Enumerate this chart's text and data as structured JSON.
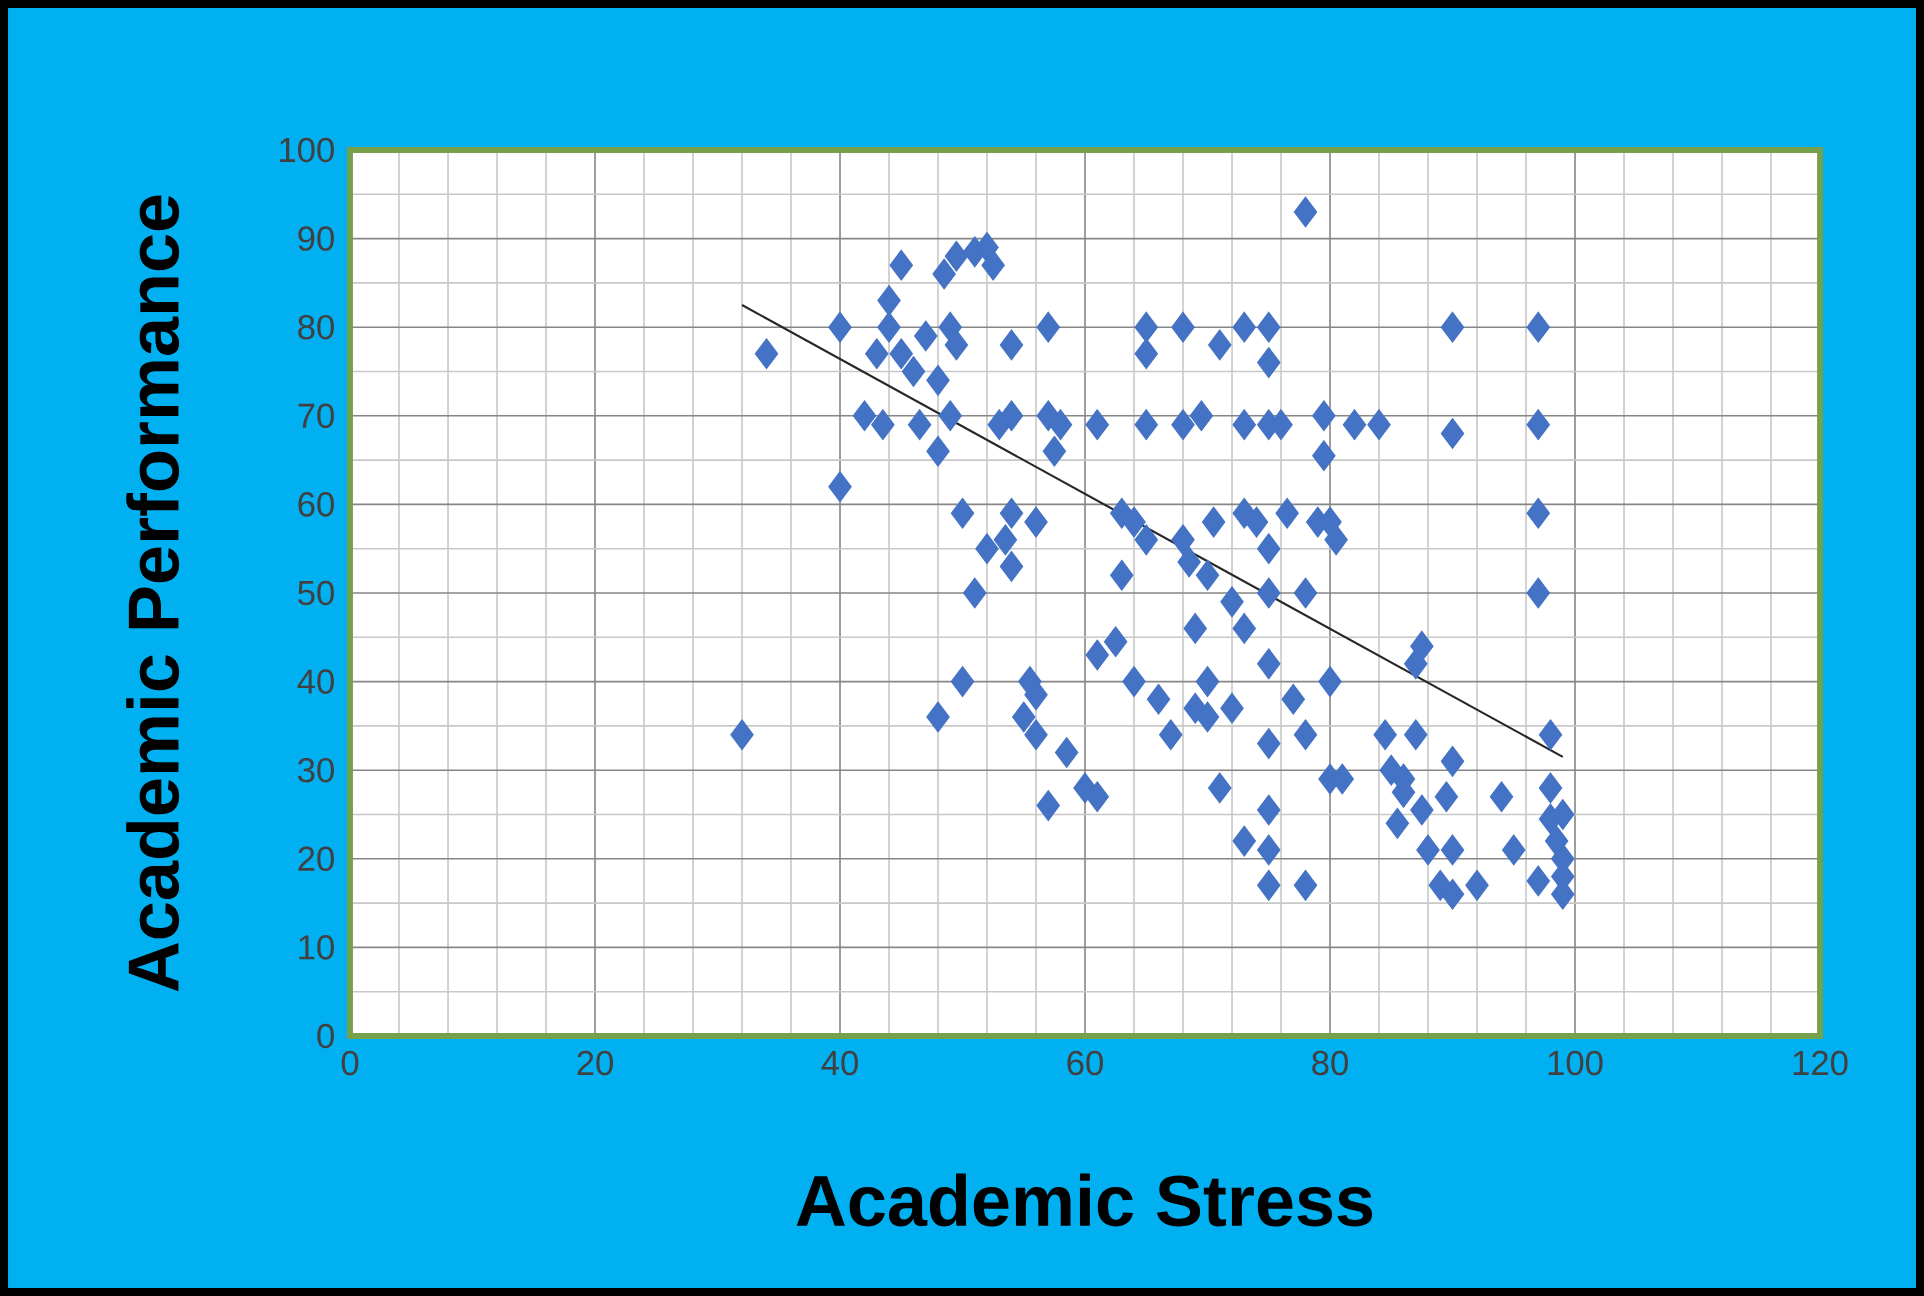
{
  "chart_data": {
    "type": "scatter",
    "xlabel": "Academic Stress",
    "ylabel": "Academic Performance",
    "xlim": [
      0,
      120
    ],
    "xticks": [
      0,
      20,
      40,
      60,
      80,
      100,
      120
    ],
    "ylim": [
      0,
      100
    ],
    "yticks": [
      0,
      10,
      20,
      30,
      40,
      50,
      60,
      70,
      80,
      90,
      100
    ],
    "grid": true,
    "marker": "diamond",
    "series": [
      {
        "color": "#4472c4",
        "x": [
          32,
          34,
          40,
          40,
          42,
          43.5,
          43,
          44,
          44,
          45,
          45,
          46,
          46.5,
          47,
          48,
          48,
          48,
          49,
          49,
          48.5,
          49.5,
          49.5,
          50,
          50,
          51,
          51,
          52,
          52,
          52.5,
          53,
          53.5,
          54,
          54,
          54,
          54,
          55,
          55.5,
          56,
          56,
          56,
          57,
          57,
          57,
          57.5,
          58,
          58.5,
          60,
          61,
          61,
          61,
          62.5,
          63,
          63,
          64,
          64,
          65,
          65,
          65,
          65,
          66,
          67,
          68,
          68,
          68,
          68.5,
          69,
          69,
          69.5,
          70,
          70,
          70,
          70.5,
          71,
          71,
          72,
          72,
          73,
          73,
          73,
          73,
          73,
          74,
          75,
          75,
          75,
          75,
          75,
          75,
          75,
          75,
          75,
          75,
          76,
          76.5,
          77,
          78,
          78,
          78,
          78,
          79,
          79.5,
          79.5,
          80,
          80,
          80,
          80.5,
          81,
          82,
          84,
          84.5,
          85,
          85.5,
          86,
          86,
          87,
          87.5,
          87,
          87.5,
          88,
          89,
          90,
          89.5,
          90,
          90,
          90,
          90,
          92,
          94,
          95,
          97,
          97,
          97,
          97,
          98,
          97,
          98,
          98,
          99,
          99,
          98.5,
          99,
          99
        ],
        "values": [
          34,
          77,
          80,
          62,
          70,
          69,
          77,
          83,
          80,
          87,
          77,
          75,
          69,
          79,
          36,
          74,
          66,
          80,
          70,
          86,
          88,
          78,
          59,
          40,
          50,
          88.5,
          89,
          55,
          87,
          69,
          56,
          53,
          78,
          70,
          59,
          36,
          40,
          38.5,
          34,
          58,
          70,
          80,
          26,
          66,
          69,
          32,
          28,
          27,
          43,
          69,
          44.5,
          59,
          52,
          40,
          58,
          56,
          69,
          80,
          77,
          38,
          34,
          56,
          69,
          80,
          53.5,
          46,
          37,
          70,
          52,
          40,
          36,
          58,
          78,
          28,
          49,
          37,
          22,
          46,
          69,
          59,
          80,
          58,
          55,
          50,
          80,
          76,
          69,
          42,
          33,
          25.5,
          21,
          17,
          69,
          59,
          38,
          34,
          17,
          93,
          50,
          58,
          70,
          65.5,
          40,
          29,
          58,
          56,
          29,
          69,
          69,
          34,
          30,
          24,
          27.5,
          29,
          42,
          44,
          34,
          25.5,
          21,
          17,
          31,
          27,
          80,
          68,
          21,
          16,
          17,
          27,
          21,
          80,
          69,
          59,
          50,
          34,
          17.5,
          28,
          24.5,
          20,
          16,
          22,
          25,
          18
        ]
      },
      {
        "type": "line",
        "marker": "none",
        "color": "#262626",
        "x": [
          32,
          99
        ],
        "values": [
          82.5,
          31.5
        ]
      }
    ]
  }
}
